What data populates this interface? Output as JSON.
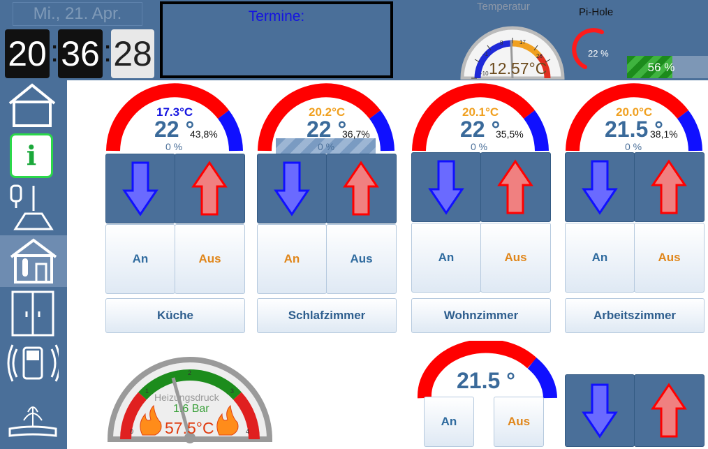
{
  "header": {
    "date": "Mi., 21. Apr. 2021",
    "clock": {
      "hours": "20",
      "minutes": "36",
      "seconds": "28",
      "sep": ":"
    },
    "termine_title": "Termine:",
    "temperature": {
      "label": "Temperatur",
      "value": "12.57°C",
      "ticks": [
        "-10",
        "-1",
        "8",
        "17",
        "26"
      ]
    },
    "pihole": {
      "label": "Pi-Hole",
      "gauge_pct": "22 %",
      "bar_label": "56 %",
      "bar_fraction": 0.56
    }
  },
  "sidebar": {
    "items": [
      {
        "name": "home-icon"
      },
      {
        "name": "info-icon",
        "label": "i"
      },
      {
        "name": "lamp-icon"
      },
      {
        "name": "house-thermometer-icon"
      },
      {
        "name": "door-icon"
      },
      {
        "name": "alarm-icon"
      },
      {
        "name": "fountain-icon"
      }
    ]
  },
  "rooms": [
    {
      "name": "Küche",
      "setpoint": "17.3°C",
      "setpoint_color": "#1515e0",
      "value": "22 °",
      "humidity": "43,8%",
      "valve": "0 %",
      "on": "An",
      "off": "Aus",
      "on_color": "an",
      "off_color": "aus"
    },
    {
      "name": "Schlafzimmer",
      "setpoint": "20.2°C",
      "setpoint_color": "#f0a020",
      "value": "22 °",
      "humidity": "36,7%",
      "valve": "0 %",
      "on": "An",
      "off": "Aus",
      "on_color": "aus",
      "off_color": "an"
    },
    {
      "name": "Wohnzimmer",
      "setpoint": "20.1°C",
      "setpoint_color": "#f0a020",
      "value": "22 °",
      "humidity": "35,5%",
      "valve": "0 %",
      "on": "An",
      "off": "Aus",
      "on_color": "an",
      "off_color": "aus"
    },
    {
      "name": "Arbeitszimmer",
      "setpoint": "20.0°C",
      "setpoint_color": "#f0a020",
      "value": "21.5 °",
      "humidity": "38,1%",
      "valve": "0 %",
      "on": "An",
      "off": "Aus",
      "on_color": "an",
      "off_color": "aus"
    }
  ],
  "heating": {
    "label": "Heizungsdruck",
    "pressure": "1.6 Bar",
    "temp": "57.5°C",
    "ticks": [
      "0",
      "1",
      "2",
      "3",
      "4"
    ],
    "pressure_value": 1.6
  },
  "extra_room": {
    "value": "21.5 °",
    "on": "An",
    "off": "Aus"
  },
  "colors": {
    "accent": "#4a6f99",
    "red": "#ff0000",
    "blue": "#1010ff",
    "orange": "#f0a020"
  }
}
